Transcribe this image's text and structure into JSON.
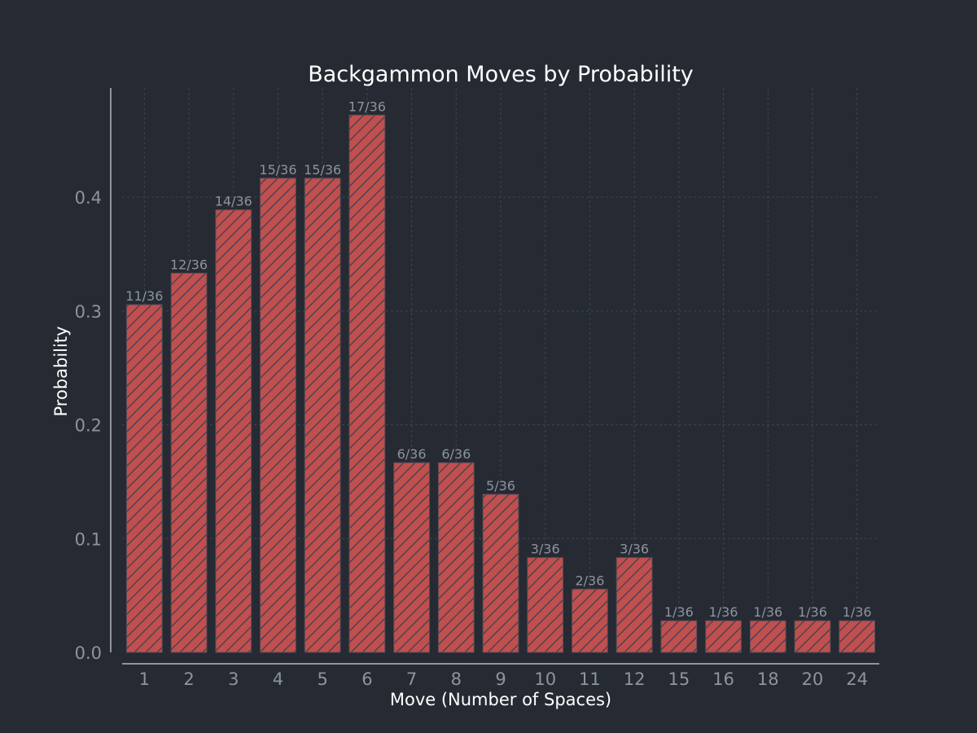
{
  "colors": {
    "background": "#252a33",
    "bar_fill": "#c0504d",
    "hatch": "#4a3f55",
    "grid": "#3f444e",
    "text_primary": "#ffffff",
    "text_secondary": "#8e939e",
    "axis": "#ffffff"
  },
  "chart_data": {
    "type": "bar",
    "title": "Backgammon Moves by Probability",
    "xlabel": "Move (Number of Spaces)",
    "ylabel": "Probability",
    "categories": [
      "1",
      "2",
      "3",
      "4",
      "5",
      "6",
      "7",
      "8",
      "9",
      "10",
      "11",
      "12",
      "15",
      "16",
      "18",
      "20",
      "24"
    ],
    "values": [
      0.3056,
      0.3333,
      0.3889,
      0.4167,
      0.4167,
      0.4722,
      0.1667,
      0.1667,
      0.1389,
      0.0833,
      0.0556,
      0.0833,
      0.0278,
      0.0278,
      0.0278,
      0.0278,
      0.0278
    ],
    "data_labels": [
      "11/36",
      "12/36",
      "14/36",
      "15/36",
      "15/36",
      "17/36",
      "6/36",
      "6/36",
      "5/36",
      "3/36",
      "2/36",
      "3/36",
      "1/36",
      "1/36",
      "1/36",
      "1/36",
      "1/36"
    ],
    "yticks": [
      0.0,
      0.1,
      0.2,
      0.3,
      0.4
    ],
    "ytick_labels": [
      "0.0",
      "0.1",
      "0.2",
      "0.3",
      "0.4"
    ],
    "ylim": [
      0,
      0.496
    ],
    "grid": true,
    "bar_pattern": "diagonal-hatch"
  }
}
